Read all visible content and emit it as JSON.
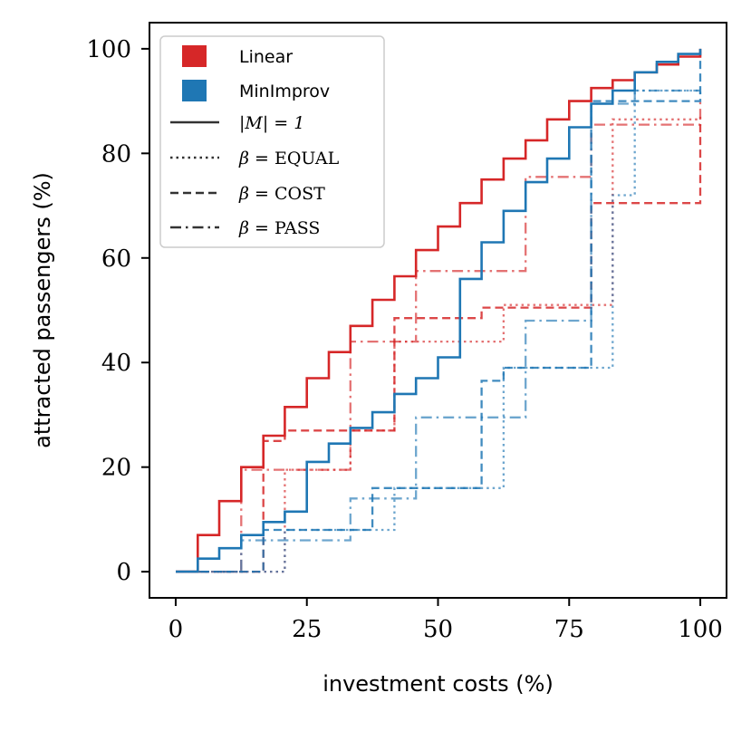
{
  "chart_data": {
    "type": "line",
    "step": "post",
    "title": "",
    "xlabel": "investment costs (%)",
    "ylabel": "attracted passengers (%)",
    "xlim": [
      -5,
      105
    ],
    "ylim": [
      -5,
      105
    ],
    "xticks": [
      0,
      25,
      50,
      75,
      100
    ],
    "yticks": [
      0,
      20,
      40,
      60,
      80,
      100
    ],
    "xtick_labels": [
      "0",
      "25",
      "50",
      "75",
      "100"
    ],
    "ytick_labels": [
      "0",
      "20",
      "40",
      "60",
      "80",
      "100"
    ],
    "legend_position": "top-left",
    "colors": {
      "Linear": "#d62728",
      "MinImprov": "#1f77b4",
      "neutral": "#333333"
    },
    "legend": {
      "models": [
        {
          "label": "Linear",
          "color": "#d62728"
        },
        {
          "label": "MinImprov",
          "color": "#1f77b4"
        }
      ],
      "styles": [
        {
          "label_math": "|M| = 1",
          "dash": "solid"
        },
        {
          "label_math": "β = ",
          "label_text": "EQUAL",
          "dash": "dotted"
        },
        {
          "label_math": "β = ",
          "label_text": "COST",
          "dash": "dashed"
        },
        {
          "label_math": "β = ",
          "label_text": "PASS",
          "dash": "dashdot"
        }
      ]
    },
    "series": [
      {
        "name": "Linear |M|=1",
        "model": "Linear",
        "style": "solid",
        "alpha": 1.0,
        "x": [
          0,
          4.2,
          8.3,
          12.5,
          16.7,
          20.8,
          25.0,
          29.2,
          33.3,
          37.5,
          41.7,
          45.8,
          50.0,
          54.2,
          58.3,
          62.5,
          66.7,
          70.8,
          75.0,
          79.2,
          83.3,
          87.5,
          91.7,
          95.8,
          100
        ],
        "y": [
          0,
          7,
          13.5,
          20,
          26,
          31.5,
          37,
          42,
          47,
          52,
          56.5,
          61.5,
          66,
          70.5,
          75,
          79,
          82.5,
          86.5,
          90,
          92.5,
          94,
          95.5,
          97,
          98.5,
          100
        ]
      },
      {
        "name": "MinImprov |M|=1",
        "model": "MinImprov",
        "style": "solid",
        "alpha": 1.0,
        "x": [
          0,
          4.2,
          8.3,
          12.5,
          16.7,
          20.8,
          25.0,
          29.2,
          33.3,
          37.5,
          41.7,
          45.8,
          50.0,
          54.2,
          58.3,
          62.5,
          66.7,
          70.8,
          75.0,
          79.2,
          83.3,
          87.5,
          91.7,
          95.8,
          100
        ],
        "y": [
          0,
          2.5,
          4.5,
          7,
          9.5,
          11.5,
          21,
          24.5,
          27.5,
          30.5,
          34,
          37,
          41,
          56,
          63,
          69,
          74.5,
          79,
          85,
          89.5,
          92,
          95.5,
          97.5,
          99,
          100
        ]
      },
      {
        "name": "Linear β=EQUAL",
        "model": "Linear",
        "style": "dotted",
        "alpha": 0.65,
        "x": [
          0,
          20.8,
          33.3,
          41.7,
          62.5,
          83.3,
          100
        ],
        "y": [
          0,
          19.5,
          27,
          44,
          51,
          86.5,
          87
        ]
      },
      {
        "name": "Linear β=COST",
        "model": "Linear",
        "style": "dashed",
        "alpha": 0.85,
        "x": [
          0,
          16.7,
          20.8,
          37.5,
          41.7,
          58.3,
          79.2,
          100
        ],
        "y": [
          0,
          25,
          27,
          27,
          48.5,
          50.5,
          70.5,
          86
        ]
      },
      {
        "name": "Linear β=PASS",
        "model": "Linear",
        "style": "dashdot",
        "alpha": 0.65,
        "x": [
          0,
          12.5,
          33.3,
          45.8,
          66.7,
          79.2,
          100
        ],
        "y": [
          0,
          19.5,
          44,
          57.5,
          75.5,
          85.5,
          90.5
        ]
      },
      {
        "name": "MinImprov β=EQUAL",
        "model": "MinImprov",
        "style": "dotted",
        "alpha": 0.65,
        "x": [
          0,
          20.8,
          41.7,
          62.5,
          83.3,
          87.5,
          100
        ],
        "y": [
          0,
          8,
          16,
          39,
          72,
          92,
          91
        ]
      },
      {
        "name": "MinImprov β=COST",
        "model": "MinImprov",
        "style": "dashed",
        "alpha": 0.85,
        "x": [
          0,
          16.7,
          37.5,
          58.3,
          62.5,
          79.2,
          100
        ],
        "y": [
          0,
          8,
          16,
          36.5,
          39,
          90,
          99.5
        ]
      },
      {
        "name": "MinImprov β=PASS",
        "model": "MinImprov",
        "style": "dashdot",
        "alpha": 0.65,
        "x": [
          0,
          12.5,
          33.3,
          45.8,
          66.7,
          79.2,
          87.5,
          100
        ],
        "y": [
          0,
          6,
          14,
          29.5,
          48,
          89.5,
          92,
          92
        ]
      }
    ]
  }
}
